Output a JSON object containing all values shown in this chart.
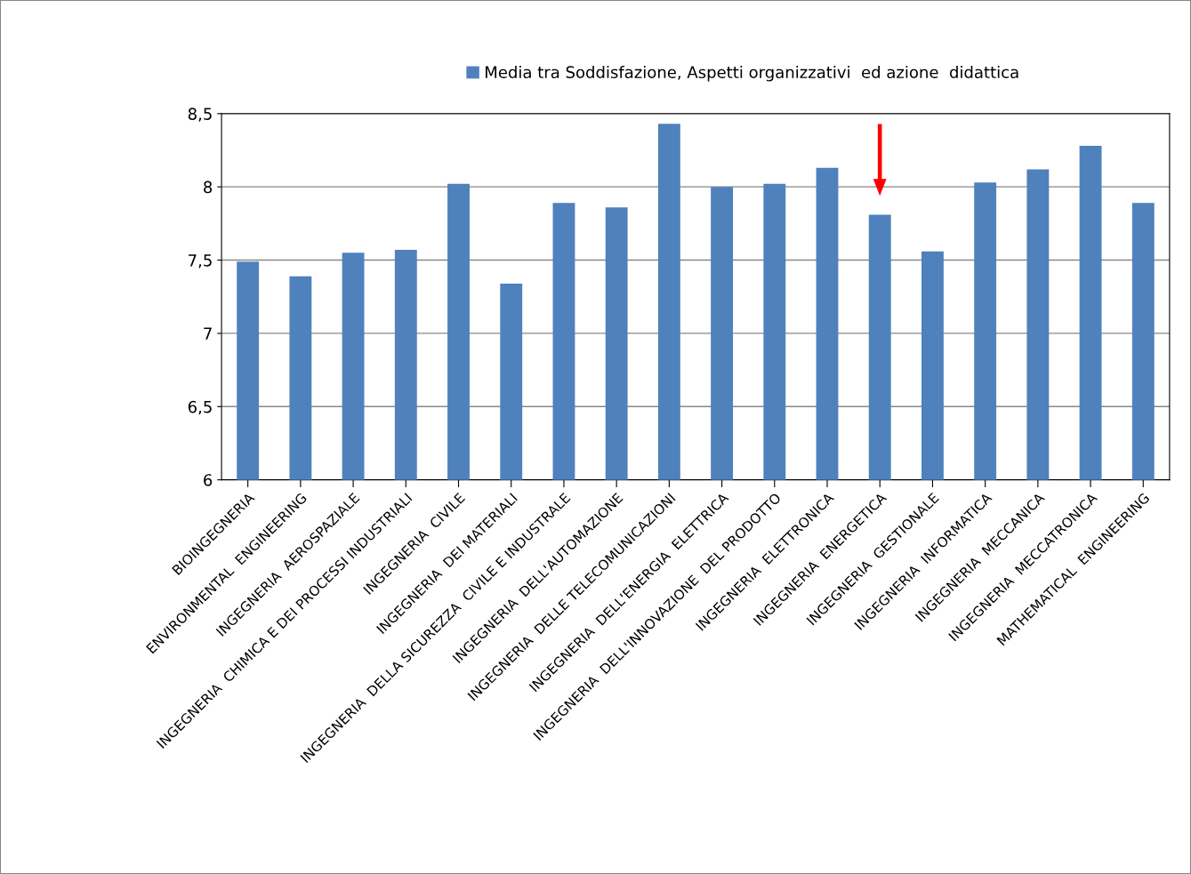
{
  "chart_data": {
    "type": "bar",
    "categories": [
      "BIOINGEGNERIA",
      "ENVIRONMENTAL  ENGINEERING",
      "INGEGNERIA  AEROSPAZIALE",
      "INGEGNERIA  CHIMICA E DEI PROCESSI INDUSTRIALI",
      "INGEGNERIA  CIVILE",
      "INGEGNERIA  DEI MATERIALI",
      "INGEGNERIA  DELLA SICUREZZA  CIVILE E INDUSTRALE",
      "INGEGNERIA  DELL'AUTOMAZIONE",
      "INGEGNERIA  DELLE TELECOMUNICAZIONI",
      "INGEGNERIA  DELL'ENERGIA  ELETTRICA",
      "INGEGNERIA  DELL'INNOVAZIONE  DEL PRODOTTO",
      "INGEGNERIA  ELETTRONICA",
      "INGEGNERIA  ENERGETICA",
      "INGEGNERIA  GESTIONALE",
      "INGEGNERIA  INFORMATICA",
      "INGEGNERIA  MECCANICA",
      "INGEGNERIA  MECCATRONICA",
      "MATHEMATICAL  ENGINEERING"
    ],
    "series": [
      {
        "name": "Media tra Soddisfazione, Aspetti organizzativi  ed azione  didattica",
        "color": "#4f81bd",
        "values": [
          7.49,
          7.39,
          7.55,
          7.57,
          8.02,
          7.34,
          7.89,
          7.86,
          8.43,
          8.0,
          8.02,
          8.13,
          7.81,
          7.56,
          8.03,
          8.12,
          8.28,
          7.89
        ]
      }
    ],
    "ylim": [
      6,
      8.5
    ],
    "yticks": [
      6,
      {
        "value": 6.5,
        "label": "6,5"
      },
      7,
      {
        "value": 7.5,
        "label": "7,5"
      },
      8,
      {
        "value": 8.5,
        "label": "8,5"
      }
    ],
    "grid": "y",
    "legend": "top"
  }
}
